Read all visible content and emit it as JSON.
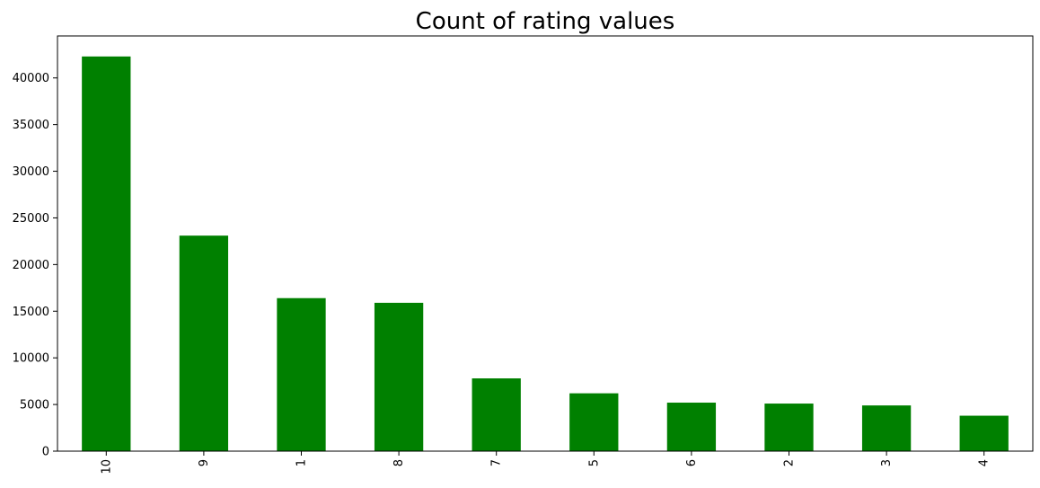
{
  "chart_data": {
    "type": "bar",
    "title": "Count of rating values",
    "xlabel": "",
    "ylabel": "",
    "categories": [
      "10",
      "9",
      "1",
      "8",
      "7",
      "5",
      "6",
      "2",
      "3",
      "4"
    ],
    "values": [
      42300,
      23100,
      16400,
      15900,
      7800,
      6200,
      5200,
      5100,
      4900,
      3800
    ],
    "ylim": [
      0,
      44500
    ],
    "yticks": [
      0,
      5000,
      10000,
      15000,
      20000,
      25000,
      30000,
      35000,
      40000
    ],
    "xtick_rotation": "vertical",
    "grid": false,
    "legend": "none",
    "bar_color": "#008000"
  }
}
